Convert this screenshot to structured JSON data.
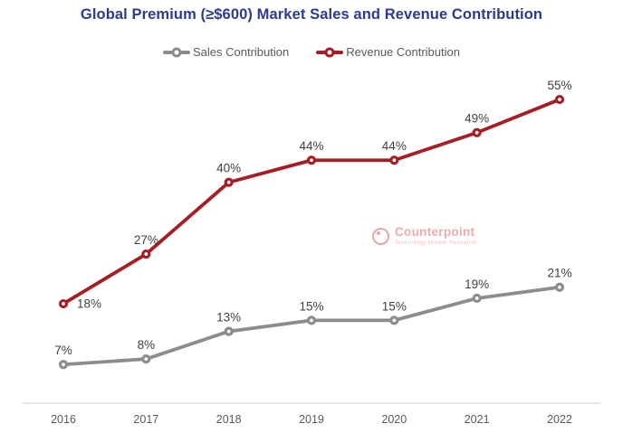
{
  "title": "Global Premium (≥$600) Market Sales and Revenue Contribution",
  "watermark": {
    "name": "Counterpoint",
    "tagline": "Technology Market Research"
  },
  "colors": {
    "title": "#2B3B93",
    "sales": "#8C8C8C",
    "revenue": "#A41E24",
    "data_label": "#3F3F3F",
    "axis_line": "#D9D9D9",
    "tick_label": "#595959",
    "watermark_pink": "#F0A6A6"
  },
  "chart_data": {
    "type": "line",
    "title": "Global Premium (≥$600) Market Sales and Revenue Contribution",
    "categories": [
      "2016",
      "2017",
      "2018",
      "2019",
      "2020",
      "2021",
      "2022"
    ],
    "series": [
      {
        "name": "Sales Contribution",
        "color": "#8C8C8C",
        "values": [
          7,
          8,
          13,
          15,
          15,
          19,
          21
        ],
        "labels": [
          "7%",
          "8%",
          "13%",
          "15%",
          "15%",
          "19%",
          "21%"
        ],
        "label_positions": [
          "top",
          "top",
          "top",
          "top",
          "top",
          "top",
          "top"
        ]
      },
      {
        "name": "Revenue Contribution",
        "color": "#A41E24",
        "values": [
          18,
          27,
          40,
          44,
          44,
          49,
          55
        ],
        "labels": [
          "18%",
          "27%",
          "40%",
          "44%",
          "44%",
          "49%",
          "55%"
        ],
        "label_positions": [
          "right",
          "top",
          "top",
          "top",
          "top",
          "top",
          "top"
        ]
      }
    ],
    "xlabel": "",
    "ylabel": "",
    "ylim": [
      0,
      60
    ],
    "value_suffix": "%",
    "grid": false,
    "legend_position": "top-center",
    "x_axis_line": true,
    "y_axis_shown": false
  }
}
